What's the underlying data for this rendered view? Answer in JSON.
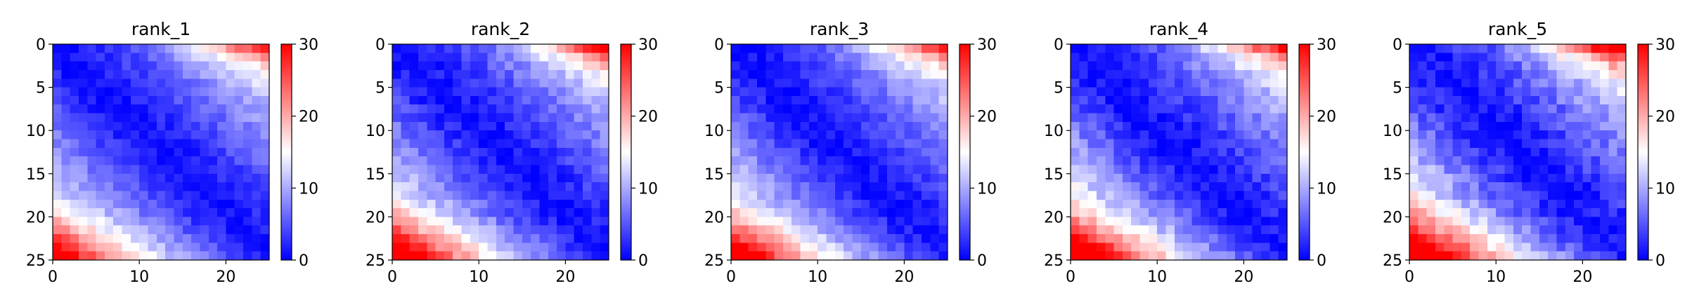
{
  "chart_data": [
    {
      "type": "heatmap",
      "title": "rank_1",
      "seed": 11,
      "noise": 1.6,
      "hot_bottom": 1.0,
      "hot_top": 0.85,
      "x_ticks": [
        "0",
        "10",
        "20"
      ],
      "y_ticks": [
        "0",
        "5",
        "10",
        "15",
        "20",
        "25"
      ],
      "xlim": [
        0,
        25
      ],
      "ylim": [
        25,
        0
      ],
      "grid": false,
      "colorbar": {
        "min": 0,
        "max": 30,
        "ticks": [
          "0",
          "10",
          "20",
          "30"
        ],
        "colors": [
          "#0000ff",
          "#ffffff",
          "#ff0000"
        ]
      }
    },
    {
      "type": "heatmap",
      "title": "rank_2",
      "seed": 23,
      "noise": 1.9,
      "hot_bottom": 1.15,
      "hot_top": 0.9,
      "x_ticks": [
        "0",
        "10",
        "20"
      ],
      "y_ticks": [
        "0",
        "5",
        "10",
        "15",
        "20",
        "25"
      ],
      "xlim": [
        0,
        25
      ],
      "ylim": [
        25,
        0
      ],
      "grid": false,
      "colorbar": {
        "min": 0,
        "max": 30,
        "ticks": [
          "0",
          "10",
          "20",
          "30"
        ],
        "colors": [
          "#0000ff",
          "#ffffff",
          "#ff0000"
        ]
      }
    },
    {
      "type": "heatmap",
      "title": "rank_3",
      "seed": 37,
      "noise": 1.7,
      "hot_bottom": 1.1,
      "hot_top": 0.8,
      "x_ticks": [
        "0",
        "10",
        "20"
      ],
      "y_ticks": [
        "0",
        "5",
        "10",
        "15",
        "20",
        "25"
      ],
      "xlim": [
        0,
        25
      ],
      "ylim": [
        25,
        0
      ],
      "grid": false,
      "colorbar": {
        "min": 0,
        "max": 30,
        "ticks": [
          "0",
          "10",
          "20",
          "30"
        ],
        "colors": [
          "#0000ff",
          "#ffffff",
          "#ff0000"
        ]
      }
    },
    {
      "type": "heatmap",
      "title": "rank_4",
      "seed": 53,
      "noise": 2.0,
      "hot_bottom": 1.25,
      "hot_top": 0.85,
      "x_ticks": [
        "0",
        "10",
        "20"
      ],
      "y_ticks": [
        "0",
        "5",
        "10",
        "15",
        "20",
        "25"
      ],
      "xlim": [
        0,
        25
      ],
      "ylim": [
        25,
        0
      ],
      "grid": false,
      "colorbar": {
        "min": 0,
        "max": 30,
        "ticks": [
          "0",
          "10",
          "20",
          "30"
        ],
        "colors": [
          "#0000ff",
          "#ffffff",
          "#ff0000"
        ]
      }
    },
    {
      "type": "heatmap",
      "title": "rank_5",
      "seed": 71,
      "noise": 2.3,
      "hot_bottom": 1.3,
      "hot_top": 1.05,
      "x_ticks": [
        "0",
        "10",
        "20"
      ],
      "y_ticks": [
        "0",
        "5",
        "10",
        "15",
        "20",
        "25"
      ],
      "xlim": [
        0,
        25
      ],
      "ylim": [
        25,
        0
      ],
      "grid": false,
      "colorbar": {
        "min": 0,
        "max": 30,
        "ticks": [
          "0",
          "10",
          "20",
          "30"
        ],
        "colors": [
          "#0000ff",
          "#ffffff",
          "#ff0000"
        ]
      }
    }
  ]
}
